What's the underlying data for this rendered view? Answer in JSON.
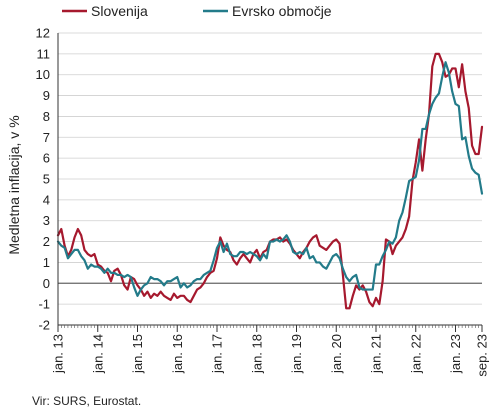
{
  "chart_data": {
    "type": "line",
    "ylabel": "Medletna inflacija, v %",
    "source": "Vir: SURS, Eurostat.",
    "ylim": [
      -2,
      12
    ],
    "yticks": [
      "-2",
      "-1",
      "0",
      "1",
      "2",
      "3",
      "4",
      "5",
      "6",
      "7",
      "8",
      "9",
      "10",
      "11",
      "12"
    ],
    "xlim": [
      "2013-01",
      "2023-09"
    ],
    "xticks": [
      {
        "label": "jan. 13",
        "date": "2013-01"
      },
      {
        "label": "jan. 14",
        "date": "2014-01"
      },
      {
        "label": "jan. 15",
        "date": "2015-01"
      },
      {
        "label": "jan. 16",
        "date": "2016-01"
      },
      {
        "label": "jan. 17",
        "date": "2017-01"
      },
      {
        "label": "jan. 18",
        "date": "2018-01"
      },
      {
        "label": "jan. 19",
        "date": "2019-01"
      },
      {
        "label": "jan. 20",
        "date": "2020-01"
      },
      {
        "label": "jan. 21",
        "date": "2021-01"
      },
      {
        "label": "jan. 22",
        "date": "2022-01"
      },
      {
        "label": "jan. 23",
        "date": "2023-01"
      },
      {
        "label": "sep. 23",
        "date": "2023-09"
      }
    ],
    "grid": "horizontal",
    "legend_position": "top",
    "zero_line": true,
    "series": [
      {
        "name": "Slovenija",
        "color": "#a6192e",
        "start": "2013-01",
        "values": [
          2.3,
          2.6,
          1.8,
          1.3,
          1.6,
          2.2,
          2.6,
          2.3,
          1.6,
          1.4,
          1.3,
          1.4,
          0.9,
          0.8,
          0.6,
          0.5,
          0.1,
          0.6,
          0.7,
          0.4,
          -0.1,
          -0.3,
          0.3,
          0.2,
          -0.1,
          -0.3,
          -0.6,
          -0.4,
          -0.7,
          -0.5,
          -0.6,
          -0.4,
          -0.6,
          -0.7,
          -0.8,
          -0.5,
          -0.7,
          -0.6,
          -0.6,
          -0.8,
          -0.9,
          -0.6,
          -0.3,
          -0.2,
          0.0,
          0.3,
          0.5,
          0.6,
          1.2,
          2.2,
          1.8,
          1.6,
          1.5,
          1.1,
          0.9,
          1.2,
          1.4,
          1.2,
          1.0,
          1.4,
          1.6,
          1.2,
          1.5,
          1.6,
          2.0,
          2.1,
          2.1,
          2.2,
          2.0,
          2.1,
          1.9,
          1.6,
          1.4,
          1.2,
          1.5,
          1.7,
          2.0,
          2.2,
          2.3,
          1.8,
          1.7,
          1.6,
          1.8,
          2.0,
          2.1,
          1.9,
          0.4,
          -1.2,
          -1.2,
          -0.6,
          -0.1,
          -0.3,
          -0.1,
          -0.4,
          -0.9,
          -1.1,
          -0.7,
          -1.0,
          0.1,
          2.1,
          2.0,
          1.4,
          1.8,
          2.0,
          2.2,
          2.6,
          3.2,
          4.9,
          5.8,
          6.9,
          5.4,
          6.9,
          8.1,
          10.4,
          11.0,
          11.0,
          10.6,
          9.9,
          10.0,
          10.3,
          10.3,
          9.4,
          10.5,
          9.2,
          8.4,
          6.6,
          6.2,
          6.2,
          7.5
        ]
      },
      {
        "name": "Evrsko območje",
        "color": "#237b8a",
        "start": "2013-01",
        "values": [
          2.0,
          1.8,
          1.7,
          1.2,
          1.4,
          1.6,
          1.6,
          1.3,
          1.1,
          0.7,
          0.9,
          0.8,
          0.8,
          0.7,
          0.5,
          0.7,
          0.5,
          0.5,
          0.4,
          0.4,
          0.3,
          0.4,
          0.3,
          -0.2,
          -0.6,
          -0.3,
          -0.1,
          0.0,
          0.3,
          0.2,
          0.2,
          0.1,
          -0.1,
          0.1,
          0.1,
          0.2,
          0.3,
          -0.2,
          0.0,
          -0.2,
          -0.1,
          0.1,
          0.2,
          0.2,
          0.4,
          0.5,
          0.6,
          1.1,
          1.7,
          2.0,
          1.5,
          1.9,
          1.4,
          1.3,
          1.3,
          1.5,
          1.5,
          1.4,
          1.5,
          1.4,
          1.3,
          1.1,
          1.4,
          1.2,
          2.0,
          2.0,
          2.1,
          2.0,
          2.1,
          2.3,
          2.0,
          1.5,
          1.4,
          1.5,
          1.4,
          1.7,
          1.2,
          1.3,
          1.0,
          1.0,
          0.8,
          0.7,
          1.0,
          1.3,
          1.4,
          1.2,
          0.7,
          0.3,
          0.1,
          0.3,
          0.4,
          -0.2,
          -0.3,
          -0.3,
          -0.3,
          -0.3,
          0.9,
          0.9,
          1.3,
          1.6,
          2.0,
          1.9,
          2.2,
          3.0,
          3.4,
          4.1,
          4.9,
          5.0,
          5.1,
          5.9,
          7.4,
          7.4,
          8.1,
          8.6,
          8.9,
          9.1,
          9.9,
          10.6,
          10.1,
          9.2,
          8.6,
          8.5,
          6.9,
          7.0,
          6.1,
          5.5,
          5.3,
          5.2,
          4.3
        ]
      }
    ]
  }
}
